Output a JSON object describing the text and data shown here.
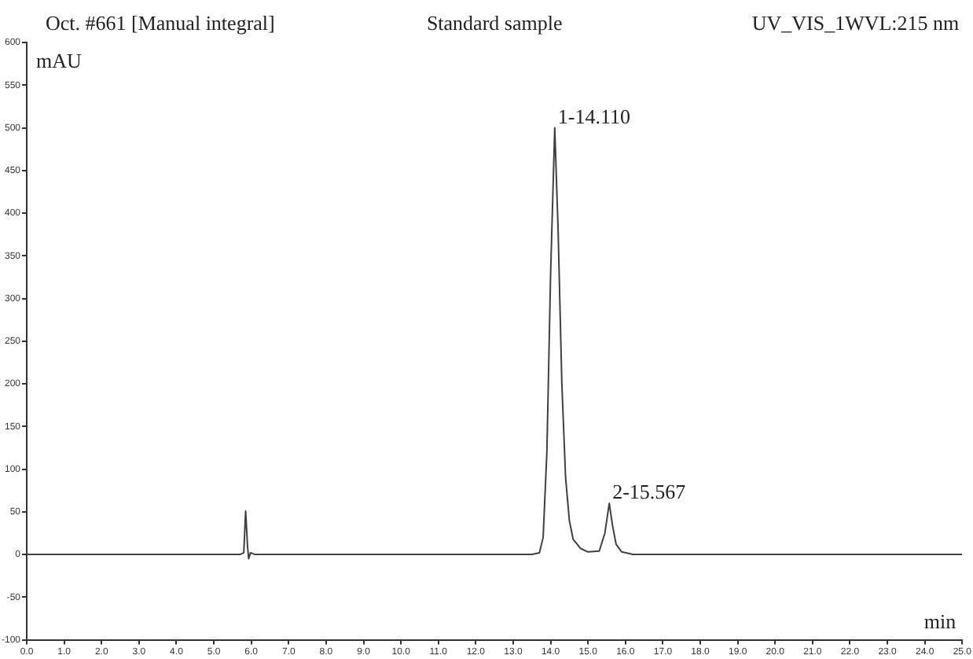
{
  "chart_data": {
    "type": "line",
    "title": "Standard sample",
    "xlabel": "min",
    "ylabel": "mAU",
    "annotations": [
      "Oct. #661 [Manual integral]",
      "UV_VIS_1WVL:215 nm",
      {
        "text": "1-14.110",
        "x": 14.11,
        "y": 500
      },
      {
        "text": "2-15.567",
        "x": 15.567,
        "y": 60
      }
    ],
    "series": [
      {
        "color": "#404040",
        "x": [
          0,
          5.7,
          5.8,
          5.85,
          5.9,
          5.93,
          5.98,
          6.1,
          13.5,
          13.7,
          13.8,
          13.9,
          14.0,
          14.11,
          14.2,
          14.3,
          14.4,
          14.5,
          14.6,
          14.8,
          15.0,
          15.3,
          15.45,
          15.567,
          15.65,
          15.75,
          15.9,
          16.2,
          25
        ],
        "values": [
          0,
          0,
          2,
          51,
          10,
          -5,
          2,
          0,
          0,
          2,
          20,
          120,
          330,
          500,
          380,
          200,
          90,
          40,
          18,
          7,
          3,
          4,
          25,
          60,
          35,
          12,
          3,
          0,
          0
        ]
      }
    ],
    "marker": "none",
    "grid": false,
    "xlim": [
      0,
      25
    ],
    "ylim": [
      -100,
      600
    ],
    "xticks": [
      {
        "value": 0,
        "label": "0.0"
      },
      {
        "value": 1,
        "label": "1.0"
      },
      {
        "value": 2,
        "label": "2.0"
      },
      {
        "value": 3,
        "label": "3.0"
      },
      {
        "value": 4,
        "label": "4.0"
      },
      {
        "value": 5,
        "label": "5.0"
      },
      {
        "value": 6,
        "label": "6.0"
      },
      {
        "value": 7,
        "label": "7.0"
      },
      {
        "value": 8,
        "label": "8.0"
      },
      {
        "value": 9,
        "label": "9.0"
      },
      {
        "value": 10,
        "label": "10.0"
      },
      {
        "value": 11,
        "label": "11.0"
      },
      {
        "value": 12,
        "label": "12.0"
      },
      {
        "value": 13,
        "label": "13.0"
      },
      {
        "value": 14,
        "label": "14.0"
      },
      {
        "value": 15,
        "label": "15.0"
      },
      {
        "value": 16,
        "label": "16.0"
      },
      {
        "value": 17,
        "label": "17.0"
      },
      {
        "value": 18,
        "label": "18.0"
      },
      {
        "value": 19,
        "label": "19.0"
      },
      {
        "value": 20,
        "label": "20.0"
      },
      {
        "value": 21,
        "label": "21.0"
      },
      {
        "value": 22,
        "label": "22.0"
      },
      {
        "value": 23,
        "label": "23.0"
      },
      {
        "value": 24,
        "label": "24.0"
      },
      {
        "value": 25,
        "label": "25.0"
      }
    ],
    "yticks": [
      -100,
      -50,
      0,
      50,
      100,
      150,
      200,
      250,
      300,
      350,
      400,
      450,
      500,
      550,
      600
    ]
  }
}
